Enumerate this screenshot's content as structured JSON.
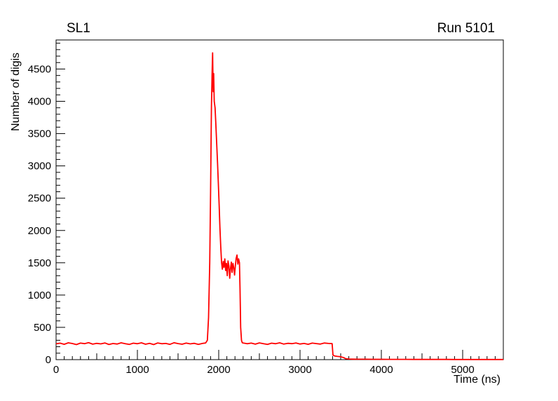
{
  "chart_data": {
    "type": "line",
    "title": "SL1",
    "title_right": "Run 5101",
    "xlabel": "Time (ns)",
    "ylabel": "Number of digis",
    "xlim": [
      0,
      5500
    ],
    "ylim": [
      0,
      4950
    ],
    "x_major_ticks": [
      0,
      1000,
      2000,
      3000,
      4000,
      5000
    ],
    "x_minor_step": 100,
    "y_major_ticks": [
      0,
      500,
      1000,
      1500,
      2000,
      2500,
      3000,
      3500,
      4000,
      4500
    ],
    "y_minor_step": 100,
    "line_color": "#ff0000",
    "frame_color": "#000000",
    "background": "#ffffff",
    "grid": false,
    "legend": "none",
    "points": [
      [
        0,
        245
      ],
      [
        50,
        255
      ],
      [
        100,
        238
      ],
      [
        150,
        260
      ],
      [
        200,
        250
      ],
      [
        250,
        233
      ],
      [
        300,
        256
      ],
      [
        350,
        248
      ],
      [
        400,
        263
      ],
      [
        450,
        240
      ],
      [
        500,
        252
      ],
      [
        550,
        244
      ],
      [
        600,
        258
      ],
      [
        650,
        234
      ],
      [
        700,
        250
      ],
      [
        750,
        242
      ],
      [
        800,
        261
      ],
      [
        850,
        248
      ],
      [
        900,
        236
      ],
      [
        950,
        255
      ],
      [
        1000,
        246
      ],
      [
        1050,
        260
      ],
      [
        1100,
        239
      ],
      [
        1150,
        252
      ],
      [
        1200,
        233
      ],
      [
        1250,
        258
      ],
      [
        1300,
        246
      ],
      [
        1350,
        251
      ],
      [
        1400,
        237
      ],
      [
        1450,
        262
      ],
      [
        1500,
        249
      ],
      [
        1550,
        239
      ],
      [
        1600,
        256
      ],
      [
        1650,
        244
      ],
      [
        1700,
        253
      ],
      [
        1750,
        237
      ],
      [
        1800,
        251
      ],
      [
        1840,
        258
      ],
      [
        1860,
        300
      ],
      [
        1875,
        650
      ],
      [
        1890,
        1500
      ],
      [
        1900,
        2600
      ],
      [
        1910,
        3900
      ],
      [
        1918,
        4400
      ],
      [
        1925,
        4750
      ],
      [
        1932,
        4150
      ],
      [
        1938,
        4430
      ],
      [
        1945,
        4000
      ],
      [
        1955,
        3900
      ],
      [
        1965,
        3650
      ],
      [
        1975,
        3350
      ],
      [
        1985,
        3050
      ],
      [
        1995,
        2750
      ],
      [
        2005,
        2400
      ],
      [
        2015,
        2050
      ],
      [
        2025,
        1750
      ],
      [
        2035,
        1500
      ],
      [
        2045,
        1400
      ],
      [
        2055,
        1520
      ],
      [
        2065,
        1430
      ],
      [
        2075,
        1560
      ],
      [
        2085,
        1380
      ],
      [
        2095,
        1490
      ],
      [
        2105,
        1300
      ],
      [
        2115,
        1530
      ],
      [
        2125,
        1450
      ],
      [
        2135,
        1260
      ],
      [
        2145,
        1410
      ],
      [
        2155,
        1510
      ],
      [
        2165,
        1350
      ],
      [
        2175,
        1490
      ],
      [
        2185,
        1420
      ],
      [
        2195,
        1310
      ],
      [
        2205,
        1460
      ],
      [
        2215,
        1570
      ],
      [
        2225,
        1620
      ],
      [
        2235,
        1480
      ],
      [
        2245,
        1560
      ],
      [
        2255,
        1500
      ],
      [
        2262,
        1100
      ],
      [
        2270,
        500
      ],
      [
        2280,
        300
      ],
      [
        2290,
        262
      ],
      [
        2300,
        258
      ],
      [
        2350,
        246
      ],
      [
        2400,
        256
      ],
      [
        2450,
        240
      ],
      [
        2500,
        259
      ],
      [
        2550,
        248
      ],
      [
        2600,
        237
      ],
      [
        2650,
        255
      ],
      [
        2700,
        246
      ],
      [
        2750,
        261
      ],
      [
        2800,
        241
      ],
      [
        2850,
        253
      ],
      [
        2900,
        247
      ],
      [
        2950,
        258
      ],
      [
        3000,
        242
      ],
      [
        3050,
        251
      ],
      [
        3100,
        238
      ],
      [
        3150,
        256
      ],
      [
        3200,
        249
      ],
      [
        3250,
        241
      ],
      [
        3300,
        257
      ],
      [
        3350,
        251
      ],
      [
        3395,
        247
      ],
      [
        3405,
        70
      ],
      [
        3430,
        55
      ],
      [
        3460,
        50
      ],
      [
        3500,
        45
      ],
      [
        3540,
        30
      ],
      [
        3560,
        15
      ],
      [
        3600,
        10
      ],
      [
        3650,
        8
      ],
      [
        3700,
        7
      ],
      [
        3800,
        6
      ],
      [
        3900,
        5
      ],
      [
        4000,
        5
      ],
      [
        4100,
        4
      ],
      [
        4200,
        4
      ],
      [
        4300,
        4
      ],
      [
        4400,
        3
      ],
      [
        4500,
        3
      ],
      [
        4600,
        3
      ],
      [
        4700,
        3
      ],
      [
        4800,
        3
      ],
      [
        4900,
        2
      ],
      [
        5000,
        2
      ],
      [
        5100,
        2
      ],
      [
        5200,
        2
      ],
      [
        5300,
        2
      ],
      [
        5400,
        2
      ],
      [
        5500,
        2
      ]
    ]
  }
}
